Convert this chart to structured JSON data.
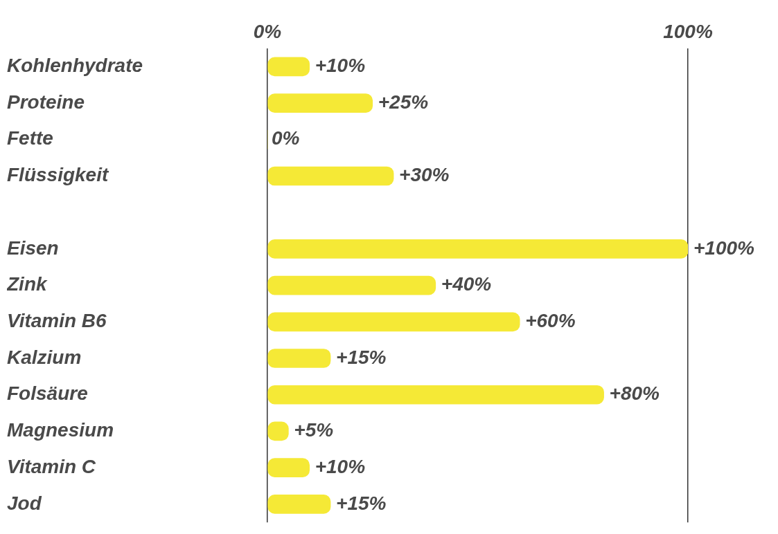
{
  "chart_data": {
    "type": "bar",
    "orientation": "horizontal",
    "categories": [
      "Kohlenhydrate",
      "Proteine",
      "Fette",
      "Flüssigkeit",
      null,
      "Eisen",
      "Zink",
      "Vitamin B6",
      "Kalzium",
      "Folsäure",
      "Magnesium",
      "Vitamin C",
      "Jod"
    ],
    "values": [
      10,
      25,
      0,
      30,
      null,
      100,
      40,
      60,
      15,
      80,
      5,
      10,
      15
    ],
    "value_labels": [
      "+10%",
      "+25%",
      "0%",
      "+30%",
      null,
      "+100%",
      "+40%",
      "+60%",
      "+15%",
      "+80%",
      "+5%",
      "+10%",
      "+15%"
    ],
    "color": "#f5e936",
    "xlim": [
      0,
      100
    ],
    "xticks": [
      {
        "value": 0,
        "label": "0%"
      },
      {
        "value": 100,
        "label": "100%"
      }
    ],
    "grid": "x"
  }
}
